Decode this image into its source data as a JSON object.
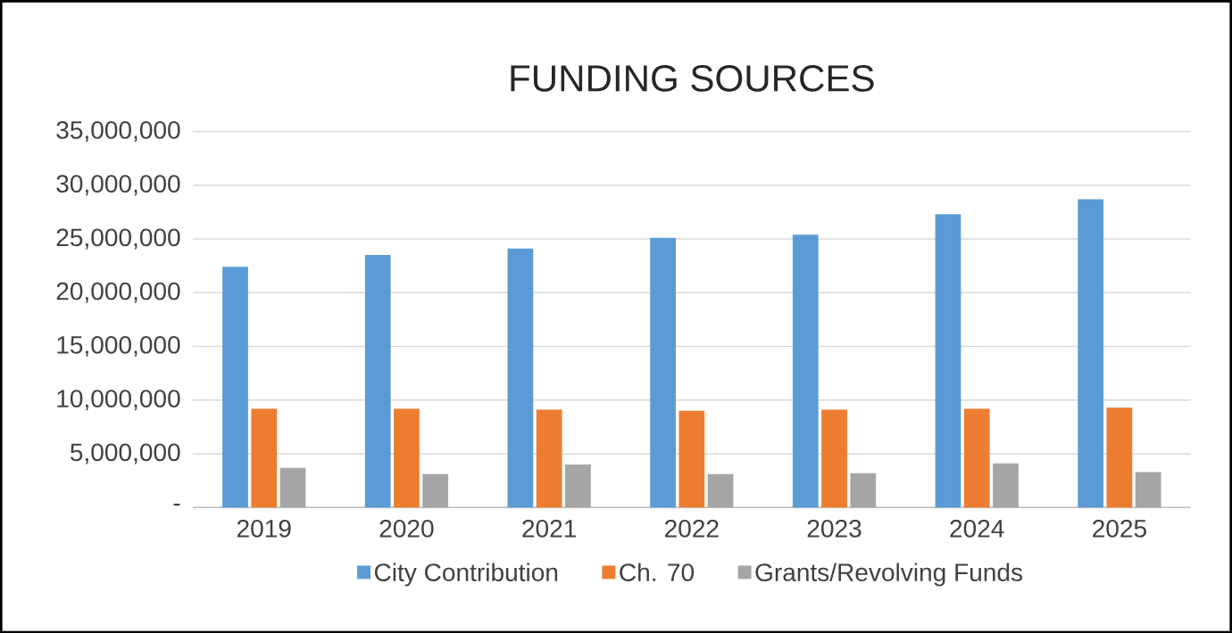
{
  "chart_data": {
    "type": "bar",
    "title": "FUNDING SOURCES",
    "categories": [
      "2019",
      "2020",
      "2021",
      "2022",
      "2023",
      "2024",
      "2025"
    ],
    "series": [
      {
        "name": "City Contribution",
        "color": "#5b9bd5",
        "values": [
          22400000,
          23500000,
          24100000,
          25100000,
          25400000,
          27300000,
          28700000
        ]
      },
      {
        "name": "Ch. 70",
        "color": "#ed7d31",
        "values": [
          9200000,
          9200000,
          9100000,
          9000000,
          9100000,
          9200000,
          9300000
        ]
      },
      {
        "name": "Grants/Revolving Funds",
        "color": "#a5a5a5",
        "values": [
          3700000,
          3100000,
          4000000,
          3100000,
          3200000,
          4100000,
          3300000
        ]
      }
    ],
    "ylim": [
      0,
      35000000
    ],
    "yticks": [
      {
        "value": 0,
        "label": "-"
      },
      {
        "value": 5000000,
        "label": "5,000,000"
      },
      {
        "value": 10000000,
        "label": "10,000,000"
      },
      {
        "value": 15000000,
        "label": "15,000,000"
      },
      {
        "value": 20000000,
        "label": "20,000,000"
      },
      {
        "value": 25000000,
        "label": "25,000,000"
      },
      {
        "value": 30000000,
        "label": "30,000,000"
      },
      {
        "value": 35000000,
        "label": "35,000,000"
      }
    ],
    "grid": "y",
    "legend": "bottom"
  }
}
